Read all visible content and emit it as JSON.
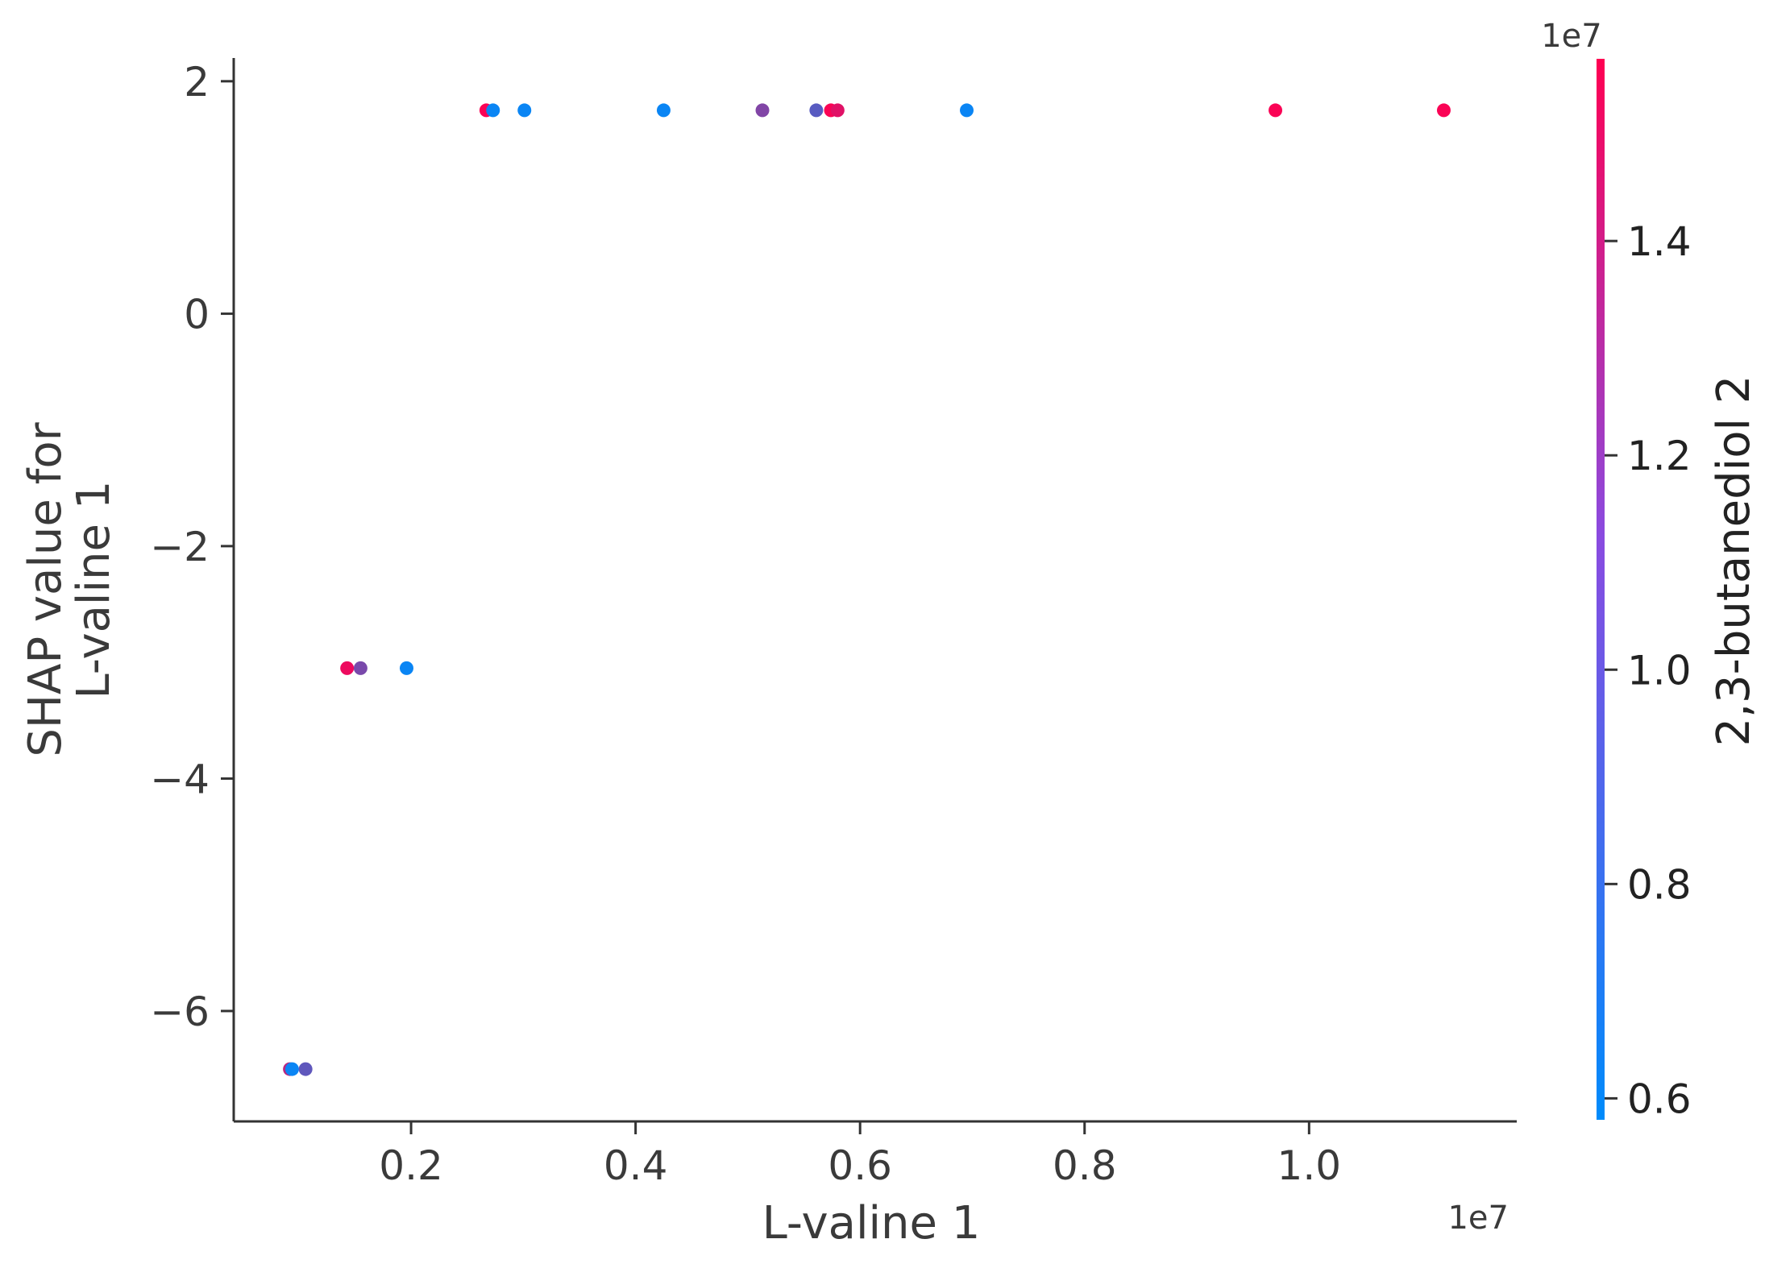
{
  "chart_data": {
    "type": "scatter",
    "xlabel": "L-valine 1",
    "ylabel": [
      "SHAP value for",
      "L-valine 1"
    ],
    "x_offset_label": "1e7",
    "x_unit_scale": 10000000,
    "xlim": [
      0.042,
      1.185
    ],
    "ylim": [
      -6.95,
      2.2
    ],
    "x_ticks": [
      {
        "value": 0.2,
        "label": "0.2"
      },
      {
        "value": 0.4,
        "label": "0.4"
      },
      {
        "value": 0.6,
        "label": "0.6"
      },
      {
        "value": 0.8,
        "label": "0.8"
      },
      {
        "value": 1.0,
        "label": "1.0"
      }
    ],
    "y_ticks": [
      {
        "value": 2,
        "label": "2"
      },
      {
        "value": 0,
        "label": "0"
      },
      {
        "value": -2,
        "label": "−2"
      },
      {
        "value": -4,
        "label": "−4"
      },
      {
        "value": -6,
        "label": "−6"
      }
    ],
    "colorbar": {
      "label": "2,3-butanediol 2",
      "offset_label": "1e7",
      "range": [
        0.58,
        1.57
      ],
      "ticks": [
        {
          "value": 0.6,
          "label": "0.6"
        },
        {
          "value": 0.8,
          "label": "0.8"
        },
        {
          "value": 1.0,
          "label": "1.0"
        },
        {
          "value": 1.2,
          "label": "1.2"
        },
        {
          "value": 1.4,
          "label": "1.4"
        }
      ],
      "colormap": [
        "#008bfb",
        "#ff0052"
      ]
    },
    "points": [
      {
        "x": 0.092,
        "y": -6.5,
        "c": 1.3
      },
      {
        "x": 0.094,
        "y": -6.5,
        "c": 0.62
      },
      {
        "x": 0.106,
        "y": -6.5,
        "c": 0.95
      },
      {
        "x": 0.143,
        "y": -3.05,
        "c": 1.5
      },
      {
        "x": 0.155,
        "y": -3.05,
        "c": 1.05
      },
      {
        "x": 0.196,
        "y": -3.05,
        "c": 0.62
      },
      {
        "x": 0.267,
        "y": 1.75,
        "c": 1.55
      },
      {
        "x": 0.273,
        "y": 1.75,
        "c": 0.62
      },
      {
        "x": 0.301,
        "y": 1.75,
        "c": 0.62
      },
      {
        "x": 0.425,
        "y": 1.75,
        "c": 0.62
      },
      {
        "x": 0.513,
        "y": 1.75,
        "c": 1.08
      },
      {
        "x": 0.561,
        "y": 1.75,
        "c": 0.92
      },
      {
        "x": 0.574,
        "y": 1.75,
        "c": 1.55
      },
      {
        "x": 0.58,
        "y": 1.75,
        "c": 1.45
      },
      {
        "x": 0.695,
        "y": 1.75,
        "c": 0.62
      },
      {
        "x": 0.97,
        "y": 1.75,
        "c": 1.55
      },
      {
        "x": 1.12,
        "y": 1.75,
        "c": 1.55
      }
    ]
  }
}
